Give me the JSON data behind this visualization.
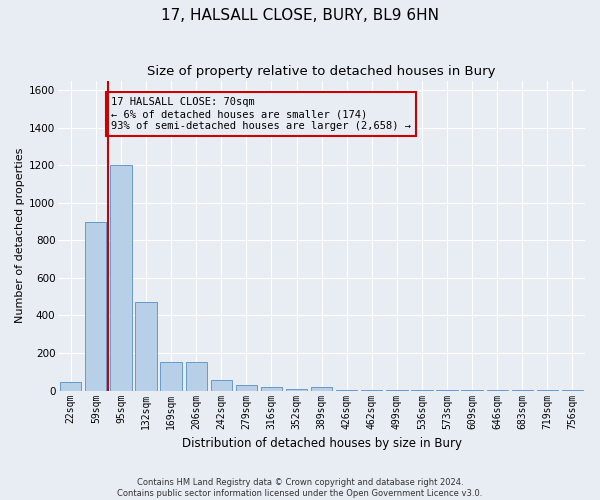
{
  "title": "17, HALSALL CLOSE, BURY, BL9 6HN",
  "subtitle": "Size of property relative to detached houses in Bury",
  "xlabel": "Distribution of detached houses by size in Bury",
  "ylabel": "Number of detached properties",
  "footer_line1": "Contains HM Land Registry data © Crown copyright and database right 2024.",
  "footer_line2": "Contains public sector information licensed under the Open Government Licence v3.0.",
  "categories": [
    "22sqm",
    "59sqm",
    "95sqm",
    "132sqm",
    "169sqm",
    "206sqm",
    "242sqm",
    "279sqm",
    "316sqm",
    "352sqm",
    "389sqm",
    "426sqm",
    "462sqm",
    "499sqm",
    "536sqm",
    "573sqm",
    "609sqm",
    "646sqm",
    "683sqm",
    "719sqm",
    "756sqm"
  ],
  "values": [
    45,
    900,
    1200,
    470,
    155,
    155,
    55,
    30,
    18,
    10,
    20,
    5,
    5,
    5,
    2,
    2,
    2,
    2,
    2,
    2,
    2
  ],
  "bar_color": "#b8cfe8",
  "bar_edge_color": "#6699cc",
  "ref_line_x": 1.5,
  "ref_line_color": "#cc0000",
  "annotation_text": "17 HALSALL CLOSE: 70sqm\n← 6% of detached houses are smaller (174)\n93% of semi-detached houses are larger (2,658) →",
  "annotation_box_color": "#cc0000",
  "ylim": [
    0,
    1650
  ],
  "yticks": [
    0,
    200,
    400,
    600,
    800,
    1000,
    1200,
    1400,
    1600
  ],
  "bg_color": "#e8edf4",
  "grid_color": "#ffffff",
  "title_fontsize": 11,
  "subtitle_fontsize": 9.5,
  "axis_label_fontsize": 8.5,
  "ylabel_fontsize": 8,
  "tick_fontsize": 7,
  "footer_fontsize": 6
}
